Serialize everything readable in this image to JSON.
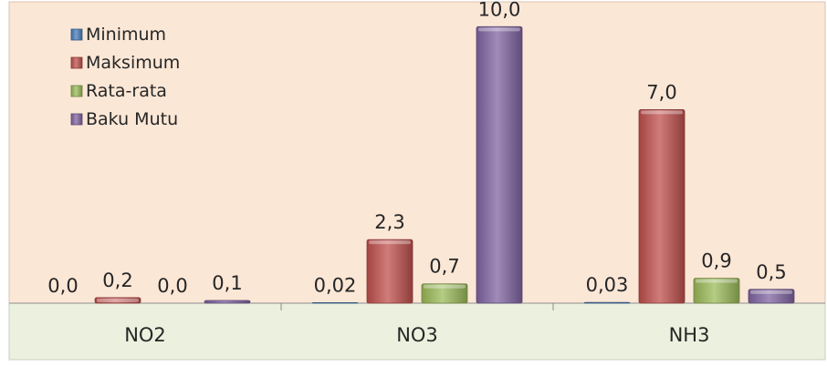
{
  "chart_data": {
    "type": "bar",
    "categories": [
      "NO2",
      "NO3",
      "NH3"
    ],
    "series": [
      {
        "name": "Minimum",
        "values": [
          0.0,
          0.02,
          0.03
        ],
        "labels": [
          "0,0",
          "0,02",
          "0,03"
        ]
      },
      {
        "name": "Maksimum",
        "values": [
          0.2,
          2.3,
          7.0
        ],
        "labels": [
          "0,2",
          "2,3",
          "7,0"
        ]
      },
      {
        "name": "Rata-rata",
        "values": [
          0.0,
          0.7,
          0.9
        ],
        "labels": [
          "0,0",
          "0,7",
          "0,9"
        ]
      },
      {
        "name": "Baku Mutu",
        "values": [
          0.1,
          10.0,
          0.5
        ],
        "labels": [
          "0,1",
          "10,0",
          "0,5"
        ]
      }
    ],
    "ylim": [
      0,
      10.9
    ],
    "legend_position": "top-left",
    "grid": false,
    "colors": {
      "Minimum": "#4a7ebb",
      "Maksimum": "#c0504d",
      "Rata-rata": "#9bbb59",
      "Baku Mutu": "#8064a2",
      "plot_background": "#fbe7d6",
      "category_band": "#ebf1de"
    }
  }
}
